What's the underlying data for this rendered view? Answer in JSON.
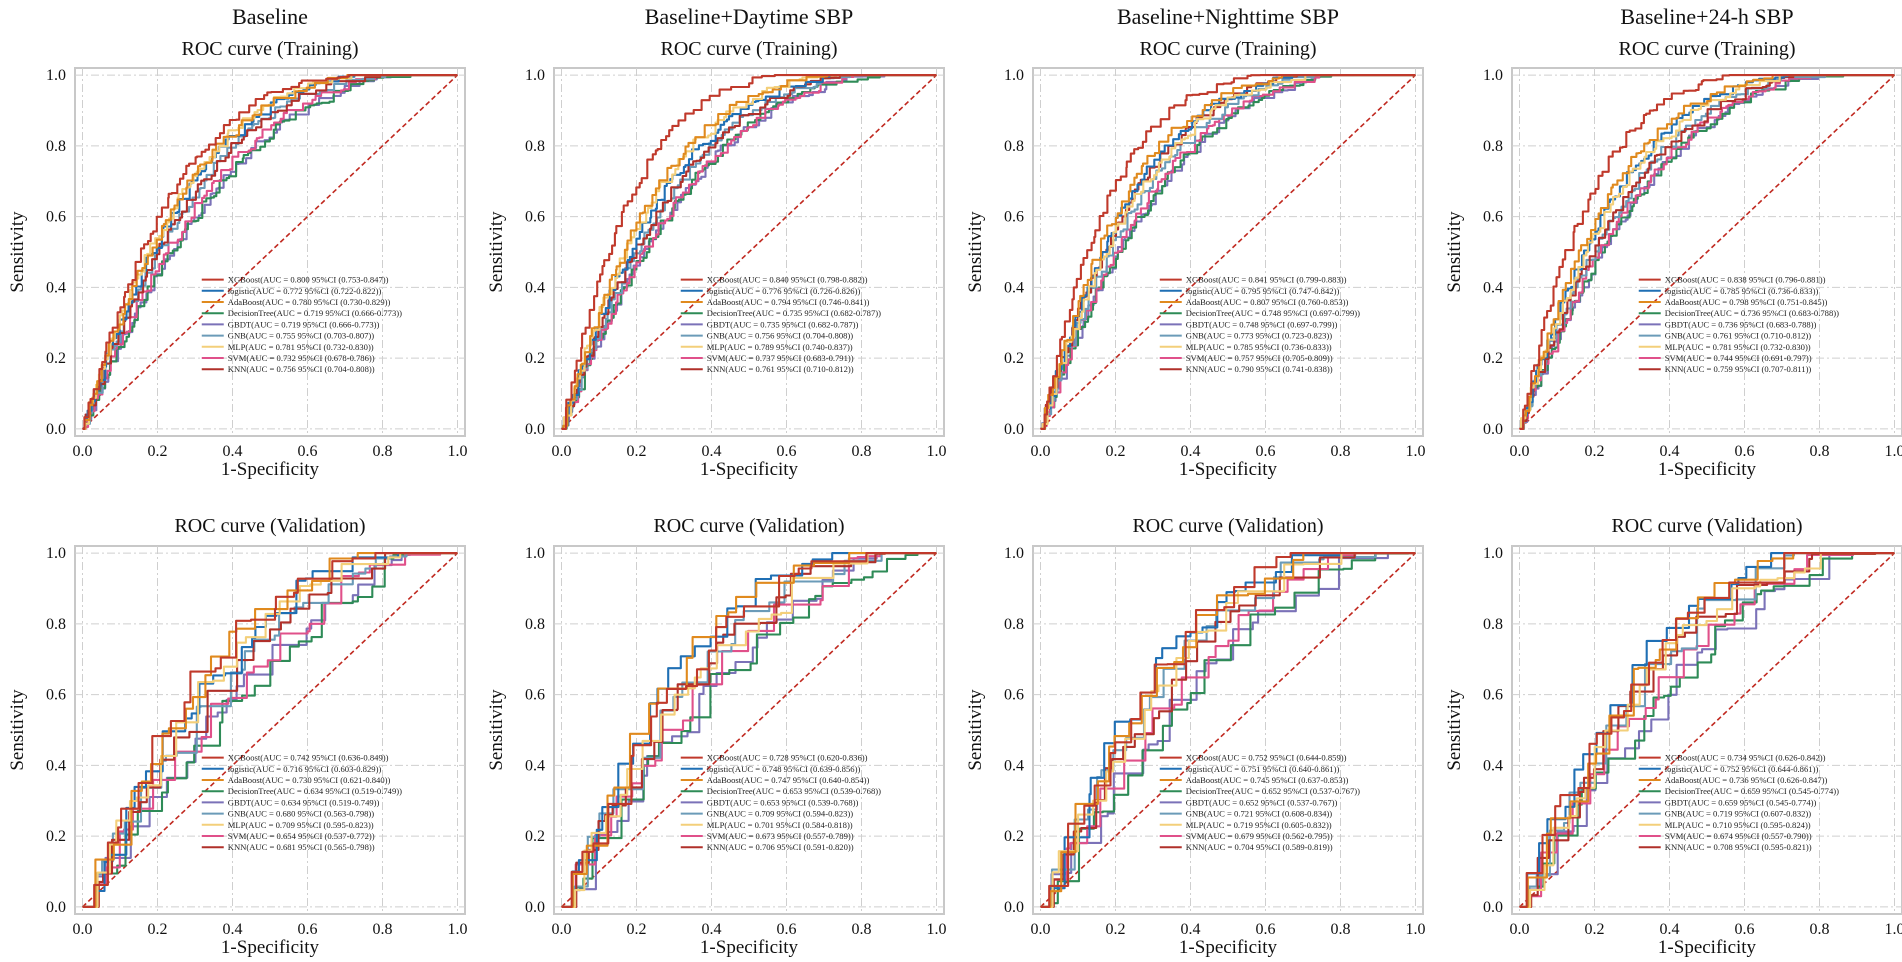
{
  "chart_data": {
    "type": "line",
    "layout": "2x4 grid of ROC curve panels",
    "column_titles": [
      "Baseline",
      "Baseline+Daytime SBP",
      "Baseline+Nighttime SBP",
      "Baseline+24-h SBP"
    ],
    "row_titles": [
      "ROC curve (Training)",
      "ROC curve (Validation)"
    ],
    "xlabel": "1-Specificity",
    "ylabel": "Sensitivity",
    "xlim": [
      0,
      1
    ],
    "ylim": [
      0,
      1
    ],
    "x_ticks": [
      "0.0",
      "0.2",
      "0.4",
      "0.6",
      "0.8",
      "1.0"
    ],
    "y_ticks": [
      "0.0",
      "0.2",
      "0.4",
      "0.6",
      "0.8",
      "1.0"
    ],
    "grid": "dash-dot",
    "legend_position": "bottom-right",
    "reference_line": {
      "name": "chance",
      "x": [
        0,
        1
      ],
      "y": [
        0,
        1
      ],
      "style": "dashed",
      "color": "#c0281f"
    },
    "models": [
      {
        "name": "XGBoost",
        "color": "#c0392b"
      },
      {
        "name": "logistic",
        "color": "#1f6fb4"
      },
      {
        "name": "AdaBoost",
        "color": "#e08a1e"
      },
      {
        "name": "DecisionTree",
        "color": "#2e8b57"
      },
      {
        "name": "GBDT",
        "color": "#7b72b8"
      },
      {
        "name": "GNB",
        "color": "#6b9bb8"
      },
      {
        "name": "MLP",
        "color": "#f3cf7a"
      },
      {
        "name": "SVM",
        "color": "#e0508a"
      },
      {
        "name": "KNN",
        "color": "#b0302a"
      }
    ],
    "panels": [
      {
        "row": 0,
        "col": 0,
        "legend": [
          "XGBoost(AUC = 0.800 95%CI (0.753-0.847))",
          "logistic(AUC = 0.772 95%CI (0.722-0.822))",
          "AdaBoost(AUC = 0.780 95%CI (0.730-0.829))",
          "DecisionTree(AUC = 0.719 95%CI (0.666-0.773))",
          "GBDT(AUC = 0.719 95%CI (0.666-0.773))",
          "GNB(AUC = 0.755 95%CI (0.703-0.807))",
          "MLP(AUC = 0.781 95%CI (0.732-0.830))",
          "SVM(AUC = 0.732 95%CI (0.678-0.786))",
          "KNN(AUC = 0.756 95%CI (0.704-0.808))"
        ],
        "auc": [
          0.8,
          0.772,
          0.78,
          0.719,
          0.719,
          0.755,
          0.781,
          0.732,
          0.756
        ]
      },
      {
        "row": 0,
        "col": 1,
        "legend": [
          "XGBoost(AUC = 0.840 95%CI (0.798-0.882))",
          "logistic(AUC = 0.776 95%CI (0.726-0.826))",
          "AdaBoost(AUC = 0.794 95%CI (0.746-0.841))",
          "DecisionTree(AUC = 0.735 95%CI (0.682-0.787))",
          "GBDT(AUC = 0.735 95%CI (0.682-0.787))",
          "GNB(AUC = 0.756 95%CI (0.704-0.808))",
          "MLP(AUC = 0.789 95%CI (0.740-0.837))",
          "SVM(AUC = 0.737 95%CI (0.683-0.791))",
          "KNN(AUC = 0.761 95%CI (0.710-0.812))"
        ],
        "auc": [
          0.84,
          0.776,
          0.794,
          0.735,
          0.735,
          0.756,
          0.789,
          0.737,
          0.761
        ]
      },
      {
        "row": 0,
        "col": 2,
        "legend": [
          "XGBoost(AUC = 0.841 95%CI (0.799-0.883))",
          "logistic(AUC = 0.795 95%CI (0.747-0.842))",
          "AdaBoost(AUC = 0.807 95%CI (0.760-0.853))",
          "DecisionTree(AUC = 0.748 95%CI (0.697-0.799))",
          "GBDT(AUC = 0.748 95%CI (0.697-0.799))",
          "GNB(AUC = 0.773 95%CI (0.723-0.823))",
          "MLP(AUC = 0.785 95%CI (0.736-0.833))",
          "SVM(AUC = 0.757 95%CI (0.705-0.809))",
          "KNN(AUC = 0.790 95%CI (0.741-0.838))"
        ],
        "auc": [
          0.841,
          0.795,
          0.807,
          0.748,
          0.748,
          0.773,
          0.785,
          0.757,
          0.79
        ]
      },
      {
        "row": 0,
        "col": 3,
        "legend": [
          "XGBoost(AUC = 0.838 95%CI (0.796-0.881))",
          "logistic(AUC = 0.785 95%CI (0.736-0.833))",
          "AdaBoost(AUC = 0.798 95%CI (0.751-0.845))",
          "DecisionTree(AUC = 0.736 95%CI (0.683-0.788))",
          "GBDT(AUC = 0.736 95%CI (0.683-0.788))",
          "GNB(AUC = 0.761 95%CI (0.710-0.812))",
          "MLP(AUC = 0.781 95%CI (0.732-0.830))",
          "SVM(AUC = 0.744 95%CI (0.691-0.797))",
          "KNN(AUC = 0.759 95%CI (0.707-0.811))"
        ],
        "auc": [
          0.838,
          0.785,
          0.798,
          0.736,
          0.736,
          0.761,
          0.781,
          0.744,
          0.759
        ]
      },
      {
        "row": 1,
        "col": 0,
        "legend": [
          "XGBoost(AUC = 0.742 95%CI (0.636-0.849))",
          "logistic(AUC = 0.716 95%CI (0.603-0.829))",
          "AdaBoost(AUC = 0.730 95%CI (0.621-0.840))",
          "DecisionTree(AUC = 0.634 95%CI (0.519-0.749))",
          "GBDT(AUC = 0.634 95%CI (0.519-0.749))",
          "GNB(AUC = 0.680 95%CI (0.563-0.798))",
          "MLP(AUC = 0.709 95%CI (0.595-0.823))",
          "SVM(AUC = 0.654 95%CI (0.537-0.772))",
          "KNN(AUC = 0.681 95%CI (0.565-0.798))"
        ],
        "auc": [
          0.742,
          0.716,
          0.73,
          0.634,
          0.634,
          0.68,
          0.709,
          0.654,
          0.681
        ]
      },
      {
        "row": 1,
        "col": 1,
        "legend": [
          "XGBoost(AUC = 0.728 95%CI (0.620-0.836))",
          "logistic(AUC = 0.748 95%CI (0.639-0.856))",
          "AdaBoost(AUC = 0.747 95%CI (0.640-0.854))",
          "DecisionTree(AUC = 0.653 95%CI (0.539-0.768))",
          "GBDT(AUC = 0.653 95%CI (0.539-0.768))",
          "GNB(AUC = 0.709 95%CI (0.594-0.823))",
          "MLP(AUC = 0.701 95%CI (0.584-0.818))",
          "SVM(AUC = 0.673 95%CI (0.557-0.789))",
          "KNN(AUC = 0.706 95%CI (0.591-0.820))"
        ],
        "auc": [
          0.728,
          0.748,
          0.747,
          0.653,
          0.653,
          0.709,
          0.701,
          0.673,
          0.706
        ]
      },
      {
        "row": 1,
        "col": 2,
        "legend": [
          "XGBoost(AUC = 0.752 95%CI (0.644-0.859))",
          "logistic(AUC = 0.751 95%CI (0.640-0.861))",
          "AdaBoost(AUC = 0.745 95%CI (0.637-0.853))",
          "DecisionTree(AUC = 0.652 95%CI (0.537-0.767))",
          "GBDT(AUC = 0.652 95%CI (0.537-0.767))",
          "GNB(AUC = 0.721 95%CI (0.608-0.834))",
          "MLP(AUC = 0.719 95%CI (0.605-0.832))",
          "SVM(AUC = 0.679 95%CI (0.562-0.795))",
          "KNN(AUC = 0.704 95%CI (0.589-0.819))"
        ],
        "auc": [
          0.752,
          0.751,
          0.745,
          0.652,
          0.652,
          0.721,
          0.719,
          0.679,
          0.704
        ]
      },
      {
        "row": 1,
        "col": 3,
        "legend": [
          "XGBoost(AUC = 0.734 95%CI (0.626-0.842))",
          "logistic(AUC = 0.752 95%CI (0.644-0.861))",
          "AdaBoost(AUC = 0.736 95%CI (0.626-0.847))",
          "DecisionTree(AUC = 0.659 95%CI (0.545-0.774))",
          "GBDT(AUC = 0.659 95%CI (0.545-0.774))",
          "GNB(AUC = 0.719 95%CI (0.607-0.832))",
          "MLP(AUC = 0.710 95%CI (0.595-0.824))",
          "SVM(AUC = 0.674 95%CI (0.557-0.790))",
          "KNN(AUC = 0.708 95%CI (0.595-0.821))"
        ],
        "auc": [
          0.734,
          0.752,
          0.736,
          0.659,
          0.659,
          0.719,
          0.71,
          0.674,
          0.708
        ]
      }
    ]
  }
}
